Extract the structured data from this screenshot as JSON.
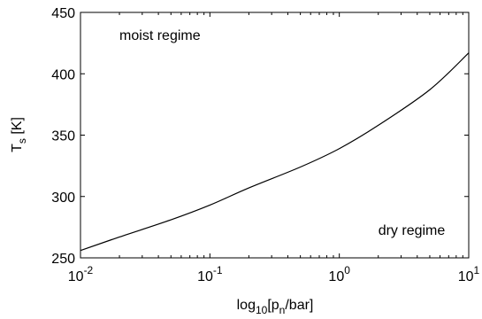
{
  "chart_data": {
    "type": "line",
    "title": "",
    "xscale": "log",
    "xlim": [
      0.01,
      10
    ],
    "ylim": [
      250,
      450
    ],
    "xlabel": {
      "main": "log",
      "sub1": "10",
      "mid": "[p",
      "sub2": "n",
      "end": "/bar]"
    },
    "ylabel": {
      "main": "T",
      "sub": "s",
      "end": " [K]"
    },
    "xticks": [
      {
        "value": 0.01,
        "base": "10",
        "exp": "-2"
      },
      {
        "value": 0.1,
        "base": "10",
        "exp": "-1"
      },
      {
        "value": 1,
        "base": "10",
        "exp": "0"
      },
      {
        "value": 10,
        "base": "10",
        "exp": "1"
      }
    ],
    "yticks": [
      {
        "value": 250,
        "label": "250"
      },
      {
        "value": 300,
        "label": "300"
      },
      {
        "value": 350,
        "label": "350"
      },
      {
        "value": 400,
        "label": "400"
      },
      {
        "value": 450,
        "label": "450"
      }
    ],
    "series": [
      {
        "color": "#000000",
        "x": [
          0.01,
          0.02,
          0.05,
          0.1,
          0.2,
          0.5,
          1,
          2,
          5,
          10
        ],
        "y": [
          256,
          267,
          281,
          293,
          307,
          324,
          339,
          358,
          387,
          417
        ]
      }
    ],
    "annotations": [
      {
        "text": "moist regime",
        "x": 0.02,
        "y": 432
      },
      {
        "text": "dry regime",
        "x": 2.0,
        "y": 273
      }
    ],
    "grid": false
  }
}
